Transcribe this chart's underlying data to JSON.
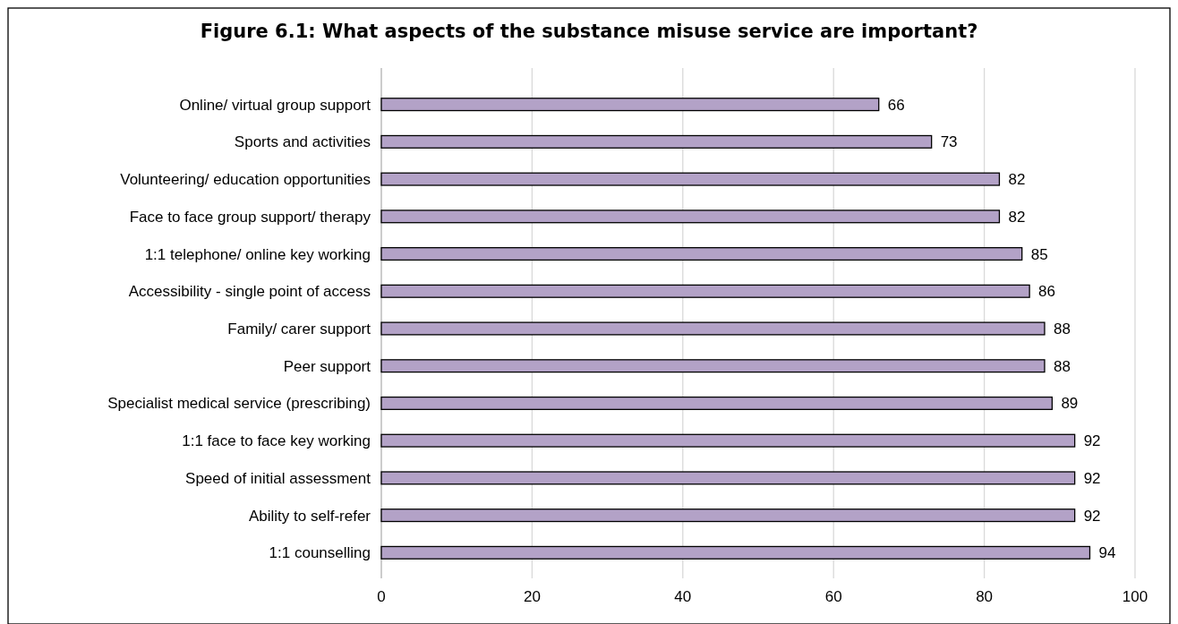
{
  "chart_data": {
    "type": "bar",
    "orientation": "horizontal",
    "title": "Figure 6.1: What aspects of the substance misuse service are important?",
    "categories": [
      "Online/ virtual group support",
      "Sports and activities",
      "Volunteering/ education opportunities",
      "Face to face group support/ therapy",
      "1:1 telephone/ online key working",
      "Accessibility - single point of access",
      "Family/ carer support",
      "Peer support",
      "Specialist medical service (prescribing)",
      "1:1 face to face key working",
      "Speed of initial assessment",
      "Ability to self-refer",
      "1:1 counselling"
    ],
    "values": [
      66,
      73,
      82,
      82,
      85,
      86,
      88,
      88,
      89,
      92,
      92,
      92,
      94
    ],
    "color": "#b3a2c7",
    "xlim": [
      0,
      100
    ],
    "xticks": [
      0,
      20,
      40,
      60,
      80,
      100
    ],
    "grid": "x",
    "data_labels": true
  }
}
